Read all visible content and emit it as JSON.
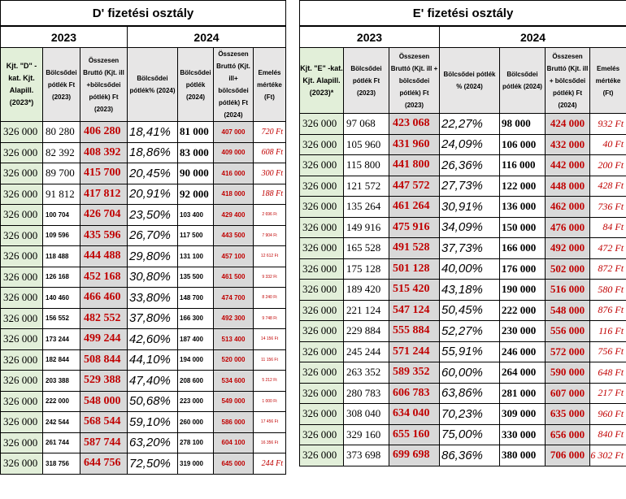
{
  "left": {
    "title": "D' fizetési osztály",
    "year_2023": "2023",
    "year_2024": "2024",
    "headers": {
      "alapill": "Kjt. \"D\" - kat. Kjt. Alapill. (2023*)",
      "potlek_2023": "Bölcsődei pótlék Ft (2023)",
      "brutto_2023": "Összesen Bruttó (Kjt. ill +bölcsődei pótlék) Ft (2023)",
      "pct_2024": "Bölcsődei pótlék% (2024)",
      "potlek_2024": "Bölcsődei pótlék (2024)",
      "brutto_2024": "Összesen Bruttó (Kjt. ill+ bölcsődei pótlék) Ft (2024)",
      "emeles": "Emelés mértéke (Ft)"
    },
    "rows": [
      {
        "alap": "326 000",
        "potlek23": "80 280",
        "brutto23": "406 280",
        "pct": "18,41%",
        "potlek24": "81 000",
        "brutto24": "407 000",
        "emeles": "720 Ft"
      },
      {
        "alap": "326 000",
        "potlek23": "82 392",
        "brutto23": "408 392",
        "pct": "18,86%",
        "potlek24": "83 000",
        "brutto24": "409 000",
        "emeles": "608 Ft"
      },
      {
        "alap": "326 000",
        "potlek23": "89 700",
        "brutto23": "415 700",
        "pct": "20,45%",
        "potlek24": "90 000",
        "brutto24": "416 000",
        "emeles": "300 Ft"
      },
      {
        "alap": "326 000",
        "potlek23": "91 812",
        "brutto23": "417 812",
        "pct": "20,91%",
        "potlek24": "92 000",
        "brutto24": "418 000",
        "emeles": "188 Ft"
      },
      {
        "alap": "326 000",
        "potlek23": "100 704",
        "brutto23": "426 704",
        "pct": "23,50%",
        "potlek24": "103 400",
        "brutto24": "429 400",
        "emeles": "2 696 Ft"
      },
      {
        "alap": "326 000",
        "potlek23": "109 596",
        "brutto23": "435 596",
        "pct": "26,70%",
        "potlek24": "117 500",
        "brutto24": "443 500",
        "emeles": "7 904 Ft"
      },
      {
        "alap": "326 000",
        "potlek23": "118 488",
        "brutto23": "444 488",
        "pct": "29,80%",
        "potlek24": "131 100",
        "brutto24": "457 100",
        "emeles": "12 612 Ft"
      },
      {
        "alap": "326 000",
        "potlek23": "126 168",
        "brutto23": "452 168",
        "pct": "30,80%",
        "potlek24": "135 500",
        "brutto24": "461 500",
        "emeles": "9 332 Ft"
      },
      {
        "alap": "326 000",
        "potlek23": "140 460",
        "brutto23": "466 460",
        "pct": "33,80%",
        "potlek24": "148 700",
        "brutto24": "474 700",
        "emeles": "8 240 Ft"
      },
      {
        "alap": "326 000",
        "potlek23": "156 552",
        "brutto23": "482 552",
        "pct": "37,80%",
        "potlek24": "166 300",
        "brutto24": "492 300",
        "emeles": "9 748 Ft"
      },
      {
        "alap": "326 000",
        "potlek23": "173 244",
        "brutto23": "499 244",
        "pct": "42,60%",
        "potlek24": "187 400",
        "brutto24": "513 400",
        "emeles": "14 156 Ft"
      },
      {
        "alap": "326 000",
        "potlek23": "182 844",
        "brutto23": "508 844",
        "pct": "44,10%",
        "potlek24": "194 000",
        "brutto24": "520 000",
        "emeles": "11 156 Ft"
      },
      {
        "alap": "326 000",
        "potlek23": "203 388",
        "brutto23": "529 388",
        "pct": "47,40%",
        "potlek24": "208 600",
        "brutto24": "534 600",
        "emeles": "5 212 Ft"
      },
      {
        "alap": "326 000",
        "potlek23": "222 000",
        "brutto23": "548 000",
        "pct": "50,68%",
        "potlek24": "223 000",
        "brutto24": "549 000",
        "emeles": "1 000 Ft"
      },
      {
        "alap": "326 000",
        "potlek23": "242 544",
        "brutto23": "568 544",
        "pct": "59,10%",
        "potlek24": "260 000",
        "brutto24": "586 000",
        "emeles": "17 456 Ft"
      },
      {
        "alap": "326 000",
        "potlek23": "261 744",
        "brutto23": "587 744",
        "pct": "63,20%",
        "potlek24": "278 100",
        "brutto24": "604 100",
        "emeles": "16 356 Ft"
      },
      {
        "alap": "326 000",
        "potlek23": "318 756",
        "brutto23": "644 756",
        "pct": "72,50%",
        "potlek24": "319 000",
        "brutto24": "645 000",
        "emeles": "244 Ft"
      }
    ]
  },
  "right": {
    "title": "E' fizetési osztály",
    "year_2023": "2023",
    "year_2024": "2024",
    "headers": {
      "alapill": "Kjt. \"E\" -kat. Kjt. Alapill. (2023)*",
      "potlek_2023": "Bölcsődei pótlék Ft (2023)",
      "brutto_2023": "Összesen Bruttó (Kjt. ill + bölcsődei pótlék) Ft (2023)",
      "pct_2024": "Bölcsődei pótlék % (2024)",
      "potlek_2024": "Bölcsődei pótlék (2024)",
      "brutto_2024": "Összesen Bruttó (Kjt. ill + bölcsődei pótlék) Ft (2024)",
      "emeles": "Emelés mértéke (Ft)"
    },
    "rows": [
      {
        "alap": "326 000",
        "potlek23": "97 068",
        "brutto23": "423 068",
        "pct": "22,27%",
        "potlek24": "98 000",
        "brutto24": "424 000",
        "emeles": "932 Ft"
      },
      {
        "alap": "326 000",
        "potlek23": "105 960",
        "brutto23": "431 960",
        "pct": "24,09%",
        "potlek24": "106 000",
        "brutto24": "432 000",
        "emeles": "40 Ft"
      },
      {
        "alap": "326 000",
        "potlek23": "115 800",
        "brutto23": "441 800",
        "pct": "26,36%",
        "potlek24": "116 000",
        "brutto24": "442 000",
        "emeles": "200 Ft"
      },
      {
        "alap": "326 000",
        "potlek23": "121 572",
        "brutto23": "447 572",
        "pct": "27,73%",
        "potlek24": "122 000",
        "brutto24": "448 000",
        "emeles": "428 Ft"
      },
      {
        "alap": "326 000",
        "potlek23": "135 264",
        "brutto23": "461 264",
        "pct": "30,91%",
        "potlek24": "136 000",
        "brutto24": "462 000",
        "emeles": "736 Ft"
      },
      {
        "alap": "326 000",
        "potlek23": "149 916",
        "brutto23": "475 916",
        "pct": "34,09%",
        "potlek24": "150 000",
        "brutto24": "476 000",
        "emeles": "84 Ft"
      },
      {
        "alap": "326 000",
        "potlek23": "165 528",
        "brutto23": "491 528",
        "pct": "37,73%",
        "potlek24": "166 000",
        "brutto24": "492 000",
        "emeles": "472 Ft"
      },
      {
        "alap": "326 000",
        "potlek23": "175 128",
        "brutto23": "501 128",
        "pct": "40,00%",
        "potlek24": "176 000",
        "brutto24": "502 000",
        "emeles": "872 Ft"
      },
      {
        "alap": "326 000",
        "potlek23": "189 420",
        "brutto23": "515 420",
        "pct": "43,18%",
        "potlek24": "190 000",
        "brutto24": "516 000",
        "emeles": "580 Ft"
      },
      {
        "alap": "326 000",
        "potlek23": "221 124",
        "brutto23": "547 124",
        "pct": "50,45%",
        "potlek24": "222 000",
        "brutto24": "548 000",
        "emeles": "876 Ft"
      },
      {
        "alap": "326 000",
        "potlek23": "229 884",
        "brutto23": "555 884",
        "pct": "52,27%",
        "potlek24": "230 000",
        "brutto24": "556 000",
        "emeles": "116 Ft"
      },
      {
        "alap": "326 000",
        "potlek23": "245 244",
        "brutto23": "571 244",
        "pct": "55,91%",
        "potlek24": "246 000",
        "brutto24": "572 000",
        "emeles": "756 Ft"
      },
      {
        "alap": "326 000",
        "potlek23": "263 352",
        "brutto23": "589 352",
        "pct": "60,00%",
        "potlek24": "264 000",
        "brutto24": "590 000",
        "emeles": "648 Ft"
      },
      {
        "alap": "326 000",
        "potlek23": "280 783",
        "brutto23": "606 783",
        "pct": "63,86%",
        "potlek24": "281 000",
        "brutto24": "607 000",
        "emeles": "217 Ft"
      },
      {
        "alap": "326 000",
        "potlek23": "308 040",
        "brutto23": "634 040",
        "pct": "70,23%",
        "potlek24": "309 000",
        "brutto24": "635 000",
        "emeles": "960 Ft"
      },
      {
        "alap": "326 000",
        "potlek23": "329 160",
        "brutto23": "655 160",
        "pct": "75,00%",
        "potlek24": "330 000",
        "brutto24": "656 000",
        "emeles": "840 Ft"
      },
      {
        "alap": "326 000",
        "potlek23": "373 698",
        "brutto23": "699 698",
        "pct": "86,36%",
        "potlek24": "380 000",
        "brutto24": "706 000",
        "emeles": "6 302 Ft"
      }
    ]
  }
}
